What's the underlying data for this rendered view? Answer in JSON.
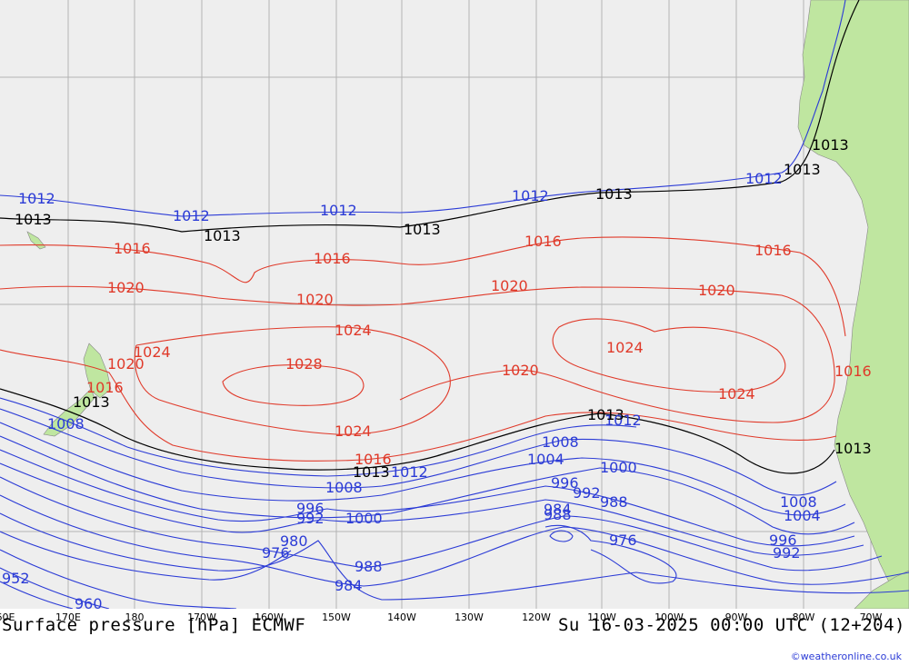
{
  "chart": {
    "title": "Surface pressure [hPa] ECMWF",
    "valid_time": "Su 16-03-2025 00:00 UTC (12+204)",
    "credit": "©weatheronline.co.uk"
  },
  "longitude_labels": [
    "60E",
    "170E",
    "180",
    "170W",
    "160W",
    "150W",
    "140W",
    "130W",
    "120W",
    "110W",
    "100W",
    "90W",
    "80W",
    "70W"
  ],
  "isobar_labels": {
    "1012": "1012",
    "1013": "1013",
    "1016": "1016",
    "1020": "1020",
    "1024": "1024",
    "1028": "1028",
    "1008": "1008",
    "1004": "1004",
    "1000": "1000",
    "996": "996",
    "992": "992",
    "988": "988",
    "984": "984",
    "980": "980",
    "976": "976",
    "960": "960",
    "952": "952"
  },
  "colors": {
    "low_isobar": "#2b3bd6",
    "high_isobar": "#e03a2a",
    "standard_isobar": "#000000",
    "ocean": "#eeeeee",
    "land": "#bfe6a0"
  }
}
